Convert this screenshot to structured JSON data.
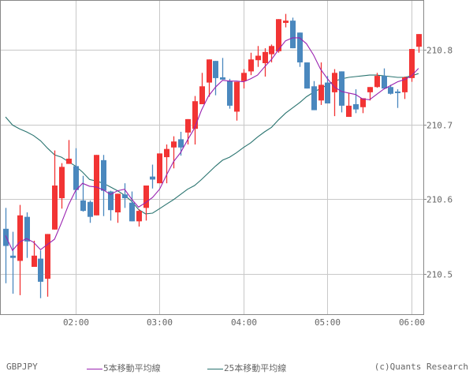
{
  "symbol": "GBPJPY",
  "legend": [
    {
      "label": "5本移動平均線",
      "color": "#9a22b0"
    },
    {
      "label": "25本移動平均線",
      "color": "#2a7470"
    }
  ],
  "copyright": "(c)Quants Research",
  "colors": {
    "up": "#f23434",
    "down": "#4a88be",
    "grid": "#c8c8c8",
    "border": "#888888",
    "text": "#666666"
  },
  "chart_data": {
    "type": "candlestick",
    "title": "GBPJPY",
    "interval": "5min",
    "xlabel": "",
    "ylabel": "",
    "ylim": [
      210.44,
      210.86
    ],
    "yticks": [
      210.5,
      210.6,
      210.7,
      210.8
    ],
    "xticks": [
      {
        "label": "02:00",
        "index": 10
      },
      {
        "label": "03:00",
        "index": 22
      },
      {
        "label": "04:00",
        "index": 34
      },
      {
        "label": "05:00",
        "index": 46
      },
      {
        "label": "06:00",
        "index": 58
      }
    ],
    "grid": true,
    "legend_position": "bottom",
    "candles": [
      {
        "o": 210.56,
        "h": 210.588,
        "l": 210.487,
        "c": 210.537
      },
      {
        "o": 210.524,
        "h": 210.556,
        "l": 210.473,
        "c": 210.521
      },
      {
        "o": 210.517,
        "h": 210.592,
        "l": 210.471,
        "c": 210.578
      },
      {
        "o": 210.576,
        "h": 210.582,
        "l": 210.521,
        "c": 210.543
      },
      {
        "o": 210.509,
        "h": 210.544,
        "l": 210.509,
        "c": 210.524
      },
      {
        "o": 210.52,
        "h": 210.531,
        "l": 210.467,
        "c": 210.489
      },
      {
        "o": 210.493,
        "h": 210.553,
        "l": 210.469,
        "c": 210.553
      },
      {
        "o": 210.559,
        "h": 210.665,
        "l": 210.559,
        "c": 210.618
      },
      {
        "o": 210.601,
        "h": 210.648,
        "l": 210.587,
        "c": 210.643
      },
      {
        "o": 210.647,
        "h": 210.679,
        "l": 210.647,
        "c": 210.654
      },
      {
        "o": 210.644,
        "h": 210.668,
        "l": 210.599,
        "c": 210.612
      },
      {
        "o": 210.598,
        "h": 210.631,
        "l": 210.583,
        "c": 210.584
      },
      {
        "o": 210.596,
        "h": 210.598,
        "l": 210.568,
        "c": 210.576
      },
      {
        "o": 210.578,
        "h": 210.659,
        "l": 210.578,
        "c": 210.659
      },
      {
        "o": 210.652,
        "h": 210.659,
        "l": 210.577,
        "c": 210.611
      },
      {
        "o": 210.61,
        "h": 210.611,
        "l": 210.571,
        "c": 210.585
      },
      {
        "o": 210.582,
        "h": 210.607,
        "l": 210.568,
        "c": 210.607
      },
      {
        "o": 210.606,
        "h": 210.621,
        "l": 210.588,
        "c": 210.601
      },
      {
        "o": 210.595,
        "h": 210.61,
        "l": 210.57,
        "c": 210.57
      },
      {
        "o": 210.57,
        "h": 210.586,
        "l": 210.563,
        "c": 210.584
      },
      {
        "o": 210.588,
        "h": 210.618,
        "l": 210.571,
        "c": 210.618
      },
      {
        "o": 210.63,
        "h": 210.646,
        "l": 210.614,
        "c": 210.626
      },
      {
        "o": 210.621,
        "h": 210.661,
        "l": 210.621,
        "c": 210.661
      },
      {
        "o": 210.656,
        "h": 210.673,
        "l": 210.621,
        "c": 210.667
      },
      {
        "o": 210.669,
        "h": 210.684,
        "l": 210.641,
        "c": 210.677
      },
      {
        "o": 210.68,
        "h": 210.69,
        "l": 210.658,
        "c": 210.669
      },
      {
        "o": 210.689,
        "h": 210.707,
        "l": 210.673,
        "c": 210.707
      },
      {
        "o": 210.694,
        "h": 210.738,
        "l": 210.673,
        "c": 210.731
      },
      {
        "o": 210.727,
        "h": 210.769,
        "l": 210.727,
        "c": 210.751
      },
      {
        "o": 210.756,
        "h": 210.787,
        "l": 210.737,
        "c": 210.787
      },
      {
        "o": 210.785,
        "h": 210.785,
        "l": 210.739,
        "c": 210.762
      },
      {
        "o": 210.763,
        "h": 210.789,
        "l": 210.76,
        "c": 210.76
      },
      {
        "o": 210.758,
        "h": 210.761,
        "l": 210.721,
        "c": 210.725
      },
      {
        "o": 210.717,
        "h": 210.757,
        "l": 210.705,
        "c": 210.757
      },
      {
        "o": 210.758,
        "h": 210.774,
        "l": 210.748,
        "c": 210.769
      },
      {
        "o": 210.771,
        "h": 210.796,
        "l": 210.766,
        "c": 210.787
      },
      {
        "o": 210.786,
        "h": 210.805,
        "l": 210.777,
        "c": 210.792
      },
      {
        "o": 210.782,
        "h": 210.802,
        "l": 210.764,
        "c": 210.797
      },
      {
        "o": 210.794,
        "h": 210.807,
        "l": 210.783,
        "c": 210.805
      },
      {
        "o": 210.798,
        "h": 210.841,
        "l": 210.796,
        "c": 210.841
      },
      {
        "o": 210.836,
        "h": 210.848,
        "l": 210.83,
        "c": 210.839
      },
      {
        "o": 210.839,
        "h": 210.843,
        "l": 210.802,
        "c": 210.802
      },
      {
        "o": 210.823,
        "h": 210.823,
        "l": 210.777,
        "c": 210.783
      },
      {
        "o": 210.783,
        "h": 210.783,
        "l": 210.748,
        "c": 210.748
      },
      {
        "o": 210.751,
        "h": 210.758,
        "l": 210.719,
        "c": 210.719
      },
      {
        "o": 210.732,
        "h": 210.783,
        "l": 210.726,
        "c": 210.753
      },
      {
        "o": 210.756,
        "h": 210.765,
        "l": 210.728,
        "c": 210.728
      },
      {
        "o": 210.743,
        "h": 210.774,
        "l": 210.711,
        "c": 210.769
      },
      {
        "o": 210.771,
        "h": 210.771,
        "l": 210.716,
        "c": 210.725
      },
      {
        "o": 210.71,
        "h": 210.742,
        "l": 210.71,
        "c": 210.725
      },
      {
        "o": 210.727,
        "h": 210.747,
        "l": 210.715,
        "c": 210.72
      },
      {
        "o": 210.723,
        "h": 210.735,
        "l": 210.715,
        "c": 210.735
      },
      {
        "o": 210.743,
        "h": 210.75,
        "l": 210.732,
        "c": 210.75
      },
      {
        "o": 210.75,
        "h": 210.769,
        "l": 210.749,
        "c": 210.765
      },
      {
        "o": 210.765,
        "h": 210.775,
        "l": 210.748,
        "c": 210.748
      },
      {
        "o": 210.75,
        "h": 210.753,
        "l": 210.74,
        "c": 210.741
      },
      {
        "o": 210.744,
        "h": 210.747,
        "l": 210.722,
        "c": 210.743
      },
      {
        "o": 210.743,
        "h": 210.764,
        "l": 210.734,
        "c": 210.763
      },
      {
        "o": 210.762,
        "h": 210.801,
        "l": 210.757,
        "c": 210.801
      },
      {
        "o": 210.804,
        "h": 210.821,
        "l": 210.796,
        "c": 210.821
      }
    ],
    "series": [
      {
        "name": "5本移動平均線",
        "values": [
          210.551,
          210.531,
          210.542,
          210.547,
          210.542,
          210.532,
          210.539,
          210.546,
          210.568,
          210.592,
          210.611,
          210.621,
          210.617,
          210.616,
          210.612,
          210.606,
          210.611,
          210.613,
          210.6,
          210.589,
          210.595,
          210.602,
          210.613,
          210.632,
          210.65,
          210.662,
          210.679,
          210.695,
          210.719,
          210.738,
          210.75,
          210.759,
          210.758,
          210.758,
          210.757,
          210.761,
          210.766,
          210.777,
          210.787,
          210.8,
          210.812,
          210.816,
          210.816,
          210.808,
          210.793,
          210.774,
          210.761,
          210.75,
          210.744,
          210.742,
          210.74,
          210.734,
          210.733,
          210.74,
          210.747,
          210.752,
          210.757,
          210.76,
          210.765,
          210.775
        ]
      },
      {
        "name": "25本移動平均線",
        "values": [
          210.71,
          210.699,
          210.694,
          210.69,
          210.685,
          210.678,
          210.668,
          210.659,
          210.656,
          210.65,
          210.644,
          210.636,
          210.626,
          210.624,
          210.621,
          210.616,
          210.611,
          210.605,
          210.597,
          210.586,
          210.58,
          210.581,
          210.587,
          210.593,
          210.599,
          210.606,
          210.613,
          210.618,
          210.626,
          210.635,
          210.644,
          210.652,
          210.656,
          210.662,
          210.669,
          210.675,
          210.683,
          210.69,
          210.696,
          210.706,
          210.715,
          210.722,
          210.729,
          210.737,
          210.743,
          210.748,
          210.753,
          210.758,
          210.761,
          210.763,
          210.764,
          210.765,
          210.766,
          210.766,
          210.765,
          210.764,
          210.763,
          210.763,
          210.765,
          210.768
        ]
      }
    ]
  }
}
